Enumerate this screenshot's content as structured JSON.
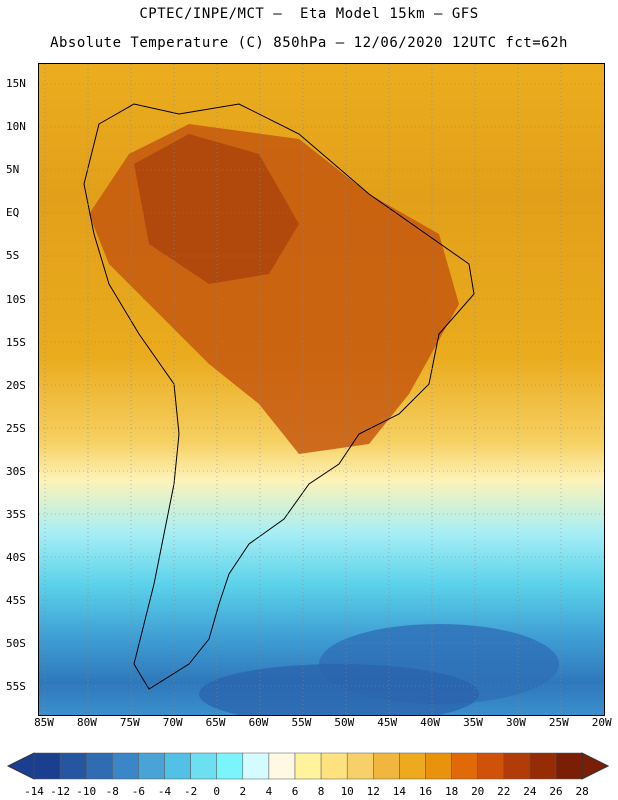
{
  "title_line1": "CPTEC/INPE/MCT –  Eta Model 15km – GFS",
  "title_line2": "Absolute Temperature (C) 850hPa – 12/06/2020 12UTC fct=62h",
  "lat_labels": [
    "15N",
    "10N",
    "5N",
    "EQ",
    "5S",
    "10S",
    "15S",
    "20S",
    "25S",
    "30S",
    "35S",
    "40S",
    "45S",
    "50S",
    "55S"
  ],
  "lon_labels": [
    "85W",
    "80W",
    "75W",
    "70W",
    "65W",
    "60W",
    "55W",
    "50W",
    "45W",
    "40W",
    "35W",
    "30W",
    "25W",
    "20W"
  ],
  "colorbar": {
    "labels": [
      "-14",
      "-12",
      "-10",
      "-8",
      "-6",
      "-4",
      "-2",
      "0",
      "2",
      "4",
      "6",
      "8",
      "10",
      "12",
      "14",
      "16",
      "18",
      "20",
      "22",
      "24",
      "26",
      "28"
    ],
    "colors": [
      "#1b3f8f",
      "#2656a0",
      "#2f6cb2",
      "#3a86c6",
      "#4aa3d7",
      "#53c1e5",
      "#6cdff1",
      "#7bf4fb",
      "#d4fbff",
      "#fff8e3",
      "#fff39d",
      "#fde27f",
      "#f8d06a",
      "#f0b63e",
      "#eeaa1f",
      "#e9920b",
      "#e06a07",
      "#d0510a",
      "#b23c09",
      "#952c05",
      "#7a1f06"
    ],
    "arrow_left_color": "#1b3f8f",
    "arrow_right_color": "#7a1f06"
  }
}
